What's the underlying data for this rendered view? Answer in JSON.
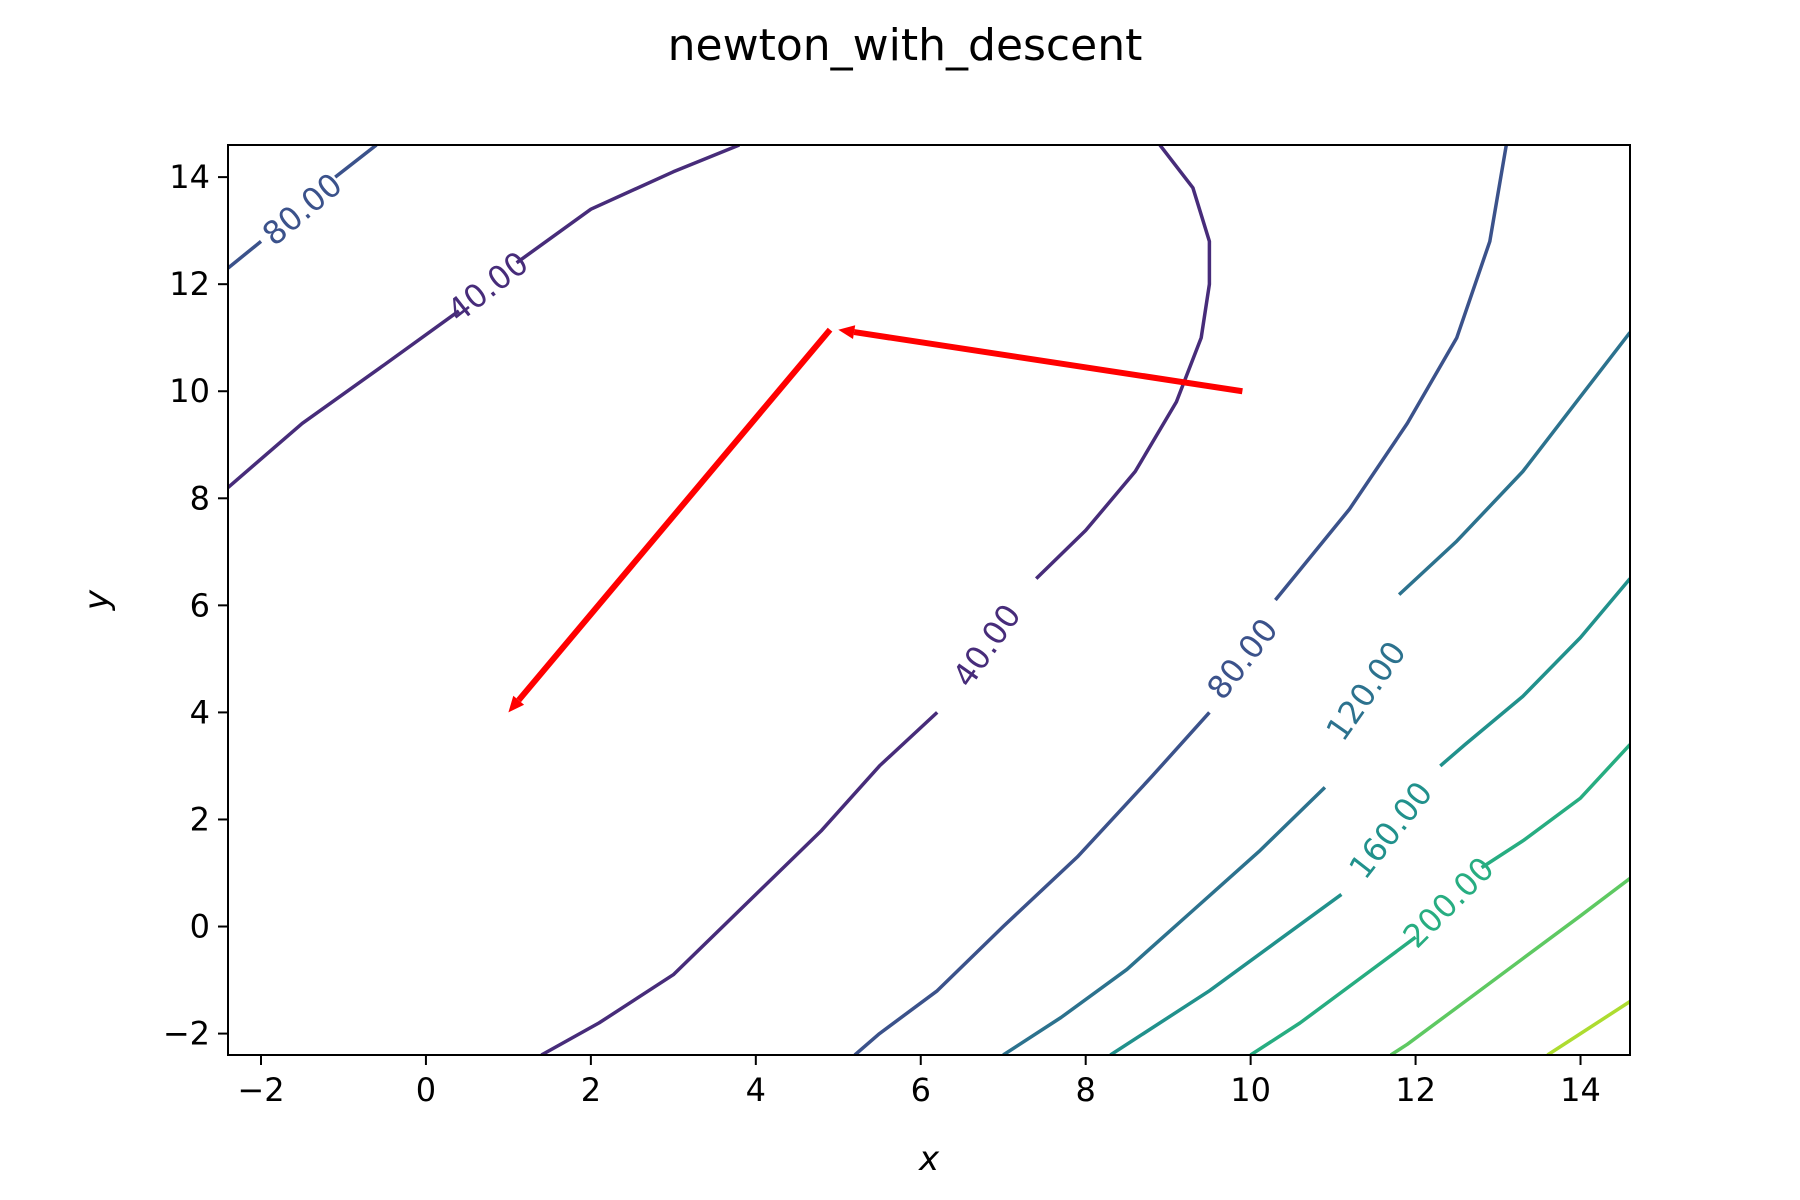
{
  "chart_data": {
    "type": "contour",
    "title": "newton_with_descent",
    "xlabel": "x",
    "ylabel": "y",
    "xlim": [
      -2.4,
      14.6
    ],
    "ylim": [
      -2.4,
      14.6
    ],
    "xticks": [
      -2,
      0,
      2,
      4,
      6,
      8,
      10,
      12,
      14
    ],
    "yticks": [
      -2,
      0,
      2,
      4,
      6,
      8,
      10,
      12,
      14
    ],
    "xtick_labels": [
      "−2",
      "0",
      "2",
      "4",
      "6",
      "8",
      "10",
      "12",
      "14"
    ],
    "ytick_labels": [
      "−2",
      "0",
      "2",
      "4",
      "6",
      "8",
      "10",
      "12",
      "14"
    ],
    "grid": false,
    "contours": [
      {
        "level": 40,
        "label": "40.00",
        "color": "#472c7a",
        "segments": [
          [
            [
              -2.4,
              8.2
            ],
            [
              -1.5,
              9.4
            ],
            [
              -0.5,
              10.5
            ],
            [
              0.4,
              11.5
            ]
          ],
          [
            [
              1.1,
              12.4
            ],
            [
              2.0,
              13.4
            ],
            [
              3.0,
              14.1
            ],
            [
              3.8,
              14.6
            ]
          ],
          [
            [
              8.9,
              14.6
            ],
            [
              9.3,
              13.8
            ],
            [
              9.5,
              12.8
            ],
            [
              9.5,
              12.0
            ],
            [
              9.4,
              11.0
            ],
            [
              9.1,
              9.8
            ],
            [
              8.6,
              8.5
            ],
            [
              8.0,
              7.4
            ],
            [
              7.4,
              6.5
            ]
          ],
          [
            [
              6.2,
              4.0
            ],
            [
              5.5,
              3.0
            ],
            [
              4.8,
              1.8
            ],
            [
              3.8,
              0.3
            ],
            [
              3.0,
              -0.9
            ],
            [
              2.1,
              -1.8
            ],
            [
              1.4,
              -2.4
            ]
          ]
        ],
        "labels": [
          {
            "x": 0.75,
            "y": 11.95,
            "angle": -38
          },
          {
            "x": 6.8,
            "y": 5.25,
            "angle": -55
          }
        ]
      },
      {
        "level": 80,
        "label": "80.00",
        "color": "#3b528b",
        "segments": [
          [
            [
              -2.4,
              12.3
            ],
            [
              -2.0,
              12.8
            ]
          ],
          [
            [
              -1.1,
              14.0
            ],
            [
              -0.6,
              14.6
            ]
          ],
          [
            [
              13.1,
              14.6
            ],
            [
              12.9,
              12.8
            ],
            [
              12.5,
              11.0
            ],
            [
              11.9,
              9.4
            ],
            [
              11.2,
              7.8
            ],
            [
              10.3,
              6.1
            ]
          ],
          [
            [
              9.5,
              4.0
            ],
            [
              8.8,
              2.8
            ],
            [
              7.9,
              1.3
            ],
            [
              7.0,
              0.0
            ],
            [
              6.2,
              -1.2
            ],
            [
              5.5,
              -2.0
            ],
            [
              5.2,
              -2.4
            ]
          ]
        ],
        "labels": [
          {
            "x": -1.5,
            "y": 13.4,
            "angle": -40
          },
          {
            "x": 9.9,
            "y": 5.0,
            "angle": -52
          }
        ]
      },
      {
        "level": 120,
        "label": "120.00",
        "color": "#2c728e",
        "segments": [
          [
            [
              14.6,
              11.1
            ],
            [
              14.0,
              9.9
            ],
            [
              13.3,
              8.5
            ],
            [
              12.5,
              7.2
            ],
            [
              11.8,
              6.2
            ]
          ],
          [
            [
              10.9,
              2.6
            ],
            [
              10.1,
              1.4
            ],
            [
              9.3,
              0.3
            ],
            [
              8.5,
              -0.8
            ],
            [
              7.7,
              -1.7
            ],
            [
              7.0,
              -2.4
            ]
          ]
        ],
        "labels": [
          {
            "x": 11.4,
            "y": 4.4,
            "angle": -55
          }
        ]
      },
      {
        "level": 160,
        "label": "160.00",
        "color": "#21918c",
        "segments": [
          [
            [
              14.6,
              6.5
            ],
            [
              14.0,
              5.4
            ],
            [
              13.3,
              4.3
            ],
            [
              12.6,
              3.4
            ],
            [
              12.3,
              3.0
            ]
          ],
          [
            [
              11.1,
              0.6
            ],
            [
              10.3,
              -0.3
            ],
            [
              9.5,
              -1.2
            ],
            [
              8.7,
              -2.0
            ],
            [
              8.3,
              -2.4
            ]
          ]
        ],
        "labels": [
          {
            "x": 11.7,
            "y": 1.8,
            "angle": -52
          }
        ]
      },
      {
        "level": 200,
        "label": "200.00",
        "color": "#27ad81",
        "segments": [
          [
            [
              14.6,
              3.4
            ],
            [
              14.0,
              2.4
            ],
            [
              13.3,
              1.6
            ],
            [
              12.8,
              1.1
            ]
          ],
          [
            [
              12.0,
              -0.2
            ],
            [
              11.3,
              -1.0
            ],
            [
              10.6,
              -1.8
            ],
            [
              10.0,
              -2.4
            ]
          ]
        ],
        "labels": [
          {
            "x": 12.4,
            "y": 0.45,
            "angle": -45
          }
        ]
      },
      {
        "level": 240,
        "label": "",
        "color": "#5ec962",
        "segments": [
          [
            [
              14.6,
              0.9
            ],
            [
              14.0,
              0.2
            ],
            [
              13.3,
              -0.6
            ],
            [
              12.6,
              -1.4
            ],
            [
              11.9,
              -2.2
            ],
            [
              11.7,
              -2.4
            ]
          ]
        ],
        "labels": []
      },
      {
        "level": 280,
        "label": "",
        "color": "#addc30",
        "segments": [
          [
            [
              14.6,
              -1.4
            ],
            [
              14.0,
              -2.0
            ],
            [
              13.6,
              -2.4
            ]
          ]
        ],
        "labels": []
      }
    ],
    "arrows": [
      {
        "from": [
          9.9,
          10.0
        ],
        "to": [
          5.0,
          11.15
        ],
        "color": "#ff0000"
      },
      {
        "from": [
          4.9,
          11.15
        ],
        "to": [
          1.0,
          4.0
        ],
        "color": "#ff0000"
      }
    ]
  }
}
